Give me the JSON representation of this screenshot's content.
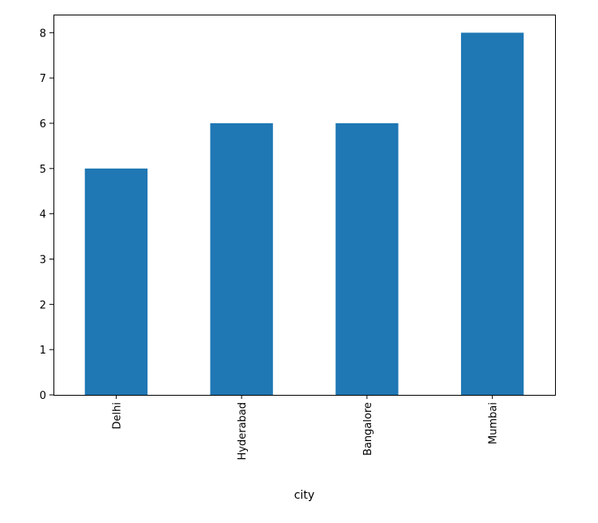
{
  "chart_data": {
    "type": "bar",
    "title": "",
    "xlabel": "city",
    "ylabel": "",
    "categories": [
      "Delhi",
      "Hyderabad",
      "Bangalore",
      "Mumbai"
    ],
    "values": [
      5,
      6,
      6,
      8
    ],
    "ylim": [
      0,
      8.4
    ],
    "yticks": [
      "0",
      "1",
      "2",
      "3",
      "4",
      "5",
      "6",
      "7",
      "8"
    ],
    "bar_color": "#1f77b4",
    "grid": false,
    "legend": "none"
  }
}
